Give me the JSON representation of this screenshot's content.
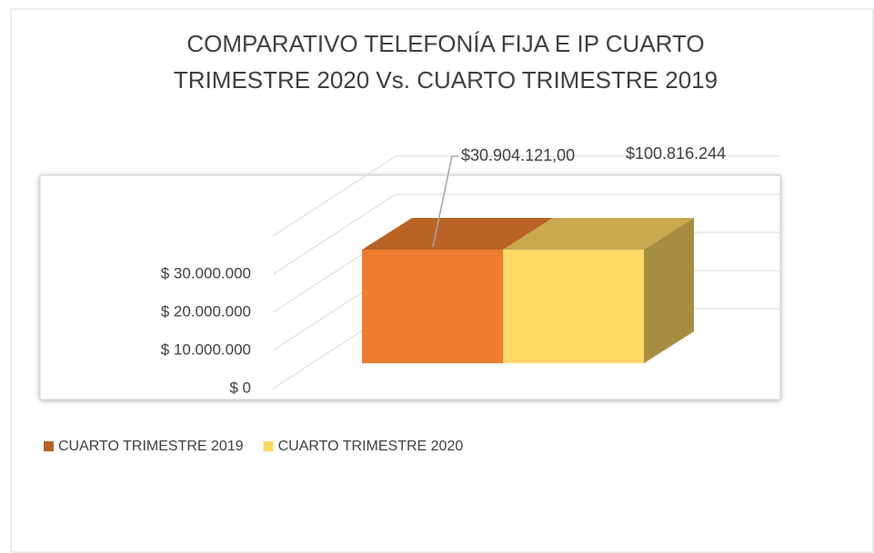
{
  "chart_data": {
    "type": "bar3d",
    "title": [
      "COMPARATIVO TELEFONÍA FIJA E IP CUARTO",
      "TRIMESTRE 2020 Vs. CUARTO TRIMESTRE 2019"
    ],
    "series": [
      {
        "name": "CUARTO TRIMESTRE 2019",
        "color": "#ED7D31",
        "values": [
          30904121.0
        ],
        "value_labels": [
          "$30.904.121,00"
        ]
      },
      {
        "name": "CUARTO TRIMESTRE 2020",
        "color": "#FFD966",
        "values": [
          100816244
        ],
        "value_labels": [
          "$100.816.244"
        ]
      }
    ],
    "ylim": [
      0,
      40000000
    ],
    "yticks": [
      {
        "value": 0,
        "label": "$ 0"
      },
      {
        "value": 10000000,
        "label": "$ 10.000.000"
      },
      {
        "value": 20000000,
        "label": "$ 20.000.000"
      },
      {
        "value": 30000000,
        "label": "$ 30.000.000"
      }
    ],
    "grid": true,
    "legend": "bottom-left"
  }
}
